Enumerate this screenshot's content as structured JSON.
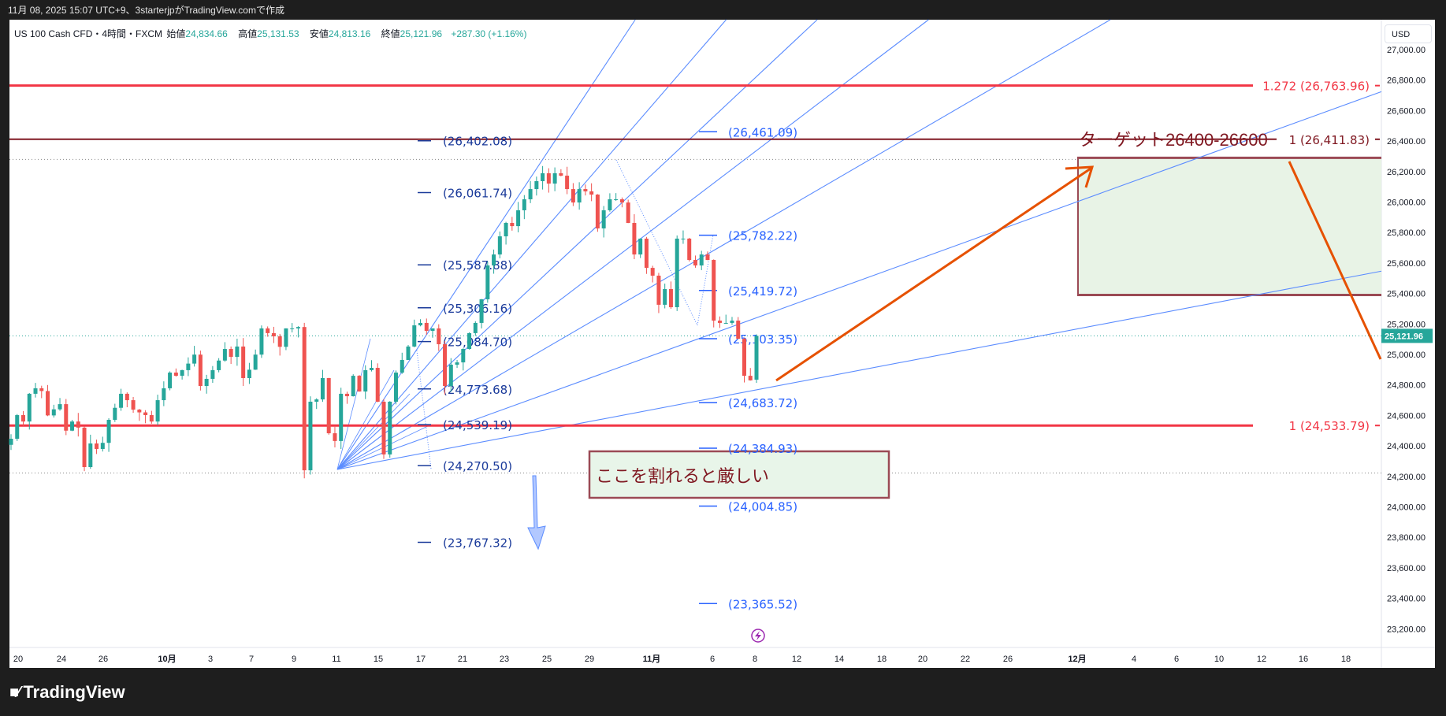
{
  "header": {
    "caption": "11月 08, 2025 15:07 UTC+9、3starterjpがTradingView.comで作成"
  },
  "legend": {
    "symbol": "US 100 Cash CFD・4時間・FXCM",
    "open_label": "始値",
    "open": "24,834.66",
    "high_label": "高値",
    "high": "25,131.53",
    "low_label": "安値",
    "low": "24,813.16",
    "close_label": "終値",
    "close": "25,121.96",
    "change": "+287.30 (+1.16%)"
  },
  "currency_button": "USD",
  "footer": {
    "brand": "TradingView",
    "logo_icon": "tradingview-logo-icon"
  },
  "colors": {
    "up": "#26a69a",
    "down": "#ef5350",
    "fib_red": "#f23645",
    "fib_dark": "#801922",
    "fan": "#5b8cff",
    "fib_left": "#1a3a9a",
    "fib_right": "#2962ff",
    "arrow": "#e65100",
    "zone_fill": "#e8f3e6",
    "zone_border": "#9b4a55"
  },
  "chart_data": {
    "type": "candlestick",
    "timeframe": "4時間",
    "ylim": [
      23100,
      27100
    ],
    "y_ticks": [
      "27,000.00",
      "26,800.00",
      "26,600.00",
      "26,400.00",
      "26,200.00",
      "26,000.00",
      "25,800.00",
      "25,600.00",
      "25,400.00",
      "25,200.00",
      "25,000.00",
      "24,800.00",
      "24,600.00",
      "24,400.00",
      "24,200.00",
      "24,000.00",
      "23,800.00",
      "23,600.00",
      "23,400.00",
      "23,200.00"
    ],
    "x_ticks": [
      "20",
      "24",
      "26",
      "10月",
      "3",
      "7",
      "9",
      "11",
      "15",
      "17",
      "21",
      "23",
      "25",
      "29",
      "11月",
      "6",
      "8",
      "12",
      "14",
      "18",
      "20",
      "22",
      "26",
      "12月",
      "4",
      "6",
      "10",
      "12",
      "16",
      "18"
    ],
    "closes_approx": [
      24447,
      24602,
      24560,
      24742,
      24778,
      24760,
      24600,
      24640,
      24674,
      24500,
      24560,
      24520,
      24261,
      24416,
      24380,
      24420,
      24571,
      24650,
      24742,
      24700,
      24638,
      24620,
      24602,
      24560,
      24700,
      24778,
      24881,
      24860,
      24897,
      24940,
      24999,
      24793,
      24840,
      24897,
      24960,
      25036,
      24984,
      25052,
      24845,
      24900,
      24999,
      25171,
      25140,
      25119,
      25050,
      25171,
      25171,
      25180,
      24240,
      24690,
      24705,
      24845,
      24483,
      24432,
      24742,
      24726,
      24860,
      24757,
      24897,
      24912,
      24690,
      24344,
      24690,
      24881,
      24964,
      25052,
      25191,
      25207,
      25155,
      25171,
      25067,
      24793,
      24933,
      24948,
      25036,
      25140,
      25207,
      25362,
      25584,
      25656,
      25775,
      25863,
      25842,
      25946,
      26018,
      26085,
      26137,
      26189,
      26121,
      26189,
      26173,
      26085,
      25997,
      26085,
      26070,
      26049,
      25827,
      25946,
      26018,
      26018,
      25997,
      25863,
      25656,
      25760,
      25568,
      25517,
      25326,
      25429,
      25310,
      25760,
      25760,
      25620,
      25584,
      25656,
      25620,
      25222,
      25207,
      25207,
      25222,
      25103,
      24860,
      24830
    ],
    "last_candle": {
      "open": 24834.66,
      "high": 25131.53,
      "low": 24813.16,
      "close": 25121.96
    },
    "last_price_label": "25,121.96",
    "horizontal_levels": [
      {
        "label": "1.272 (26,763.96)",
        "price": 26763.96,
        "color": "#f23645"
      },
      {
        "label": "1 (26,411.83)",
        "price": 26411.83,
        "color": "#801922"
      },
      {
        "label": "1 (24,533.79)",
        "price": 24533.79,
        "color": "#f23645"
      }
    ],
    "fib_left": [
      {
        "label": "(26,402.08)",
        "price": 26402.08
      },
      {
        "label": "(26,061.74)",
        "price": 26061.74
      },
      {
        "label": "(25,587.88)",
        "price": 25587.88
      },
      {
        "label": "(25,306.16)",
        "price": 25306.16
      },
      {
        "label": "(25,084.70)",
        "price": 25084.7
      },
      {
        "label": "(24,773.68)",
        "price": 24773.68
      },
      {
        "label": "(24,539.19)",
        "price": 24539.19
      },
      {
        "label": "(24,270.50)",
        "price": 24270.5
      },
      {
        "label": "(23,767.32)",
        "price": 23767.32
      }
    ],
    "fib_right": [
      {
        "label": "(26,461.09)",
        "price": 26461.09
      },
      {
        "label": "(25,782.22)",
        "price": 25782.22
      },
      {
        "label": "(25,419.72)",
        "price": 25419.72
      },
      {
        "label": "(25,103.35)",
        "price": 25103.35
      },
      {
        "label": "(24,683.72)",
        "price": 24683.72
      },
      {
        "label": "(24,384.93)",
        "price": 24384.93
      },
      {
        "label": "(24,004.85)",
        "price": 24004.85
      },
      {
        "label": "(23,365.52)",
        "price": 23365.52
      }
    ],
    "target_zone": {
      "label": "ターゲット26400-26600",
      "top": 26290,
      "bottom": 25390
    },
    "warning_box": {
      "label": "ここを割れると厳しい"
    },
    "recent_high": 26280,
    "recent_low": 24222
  }
}
